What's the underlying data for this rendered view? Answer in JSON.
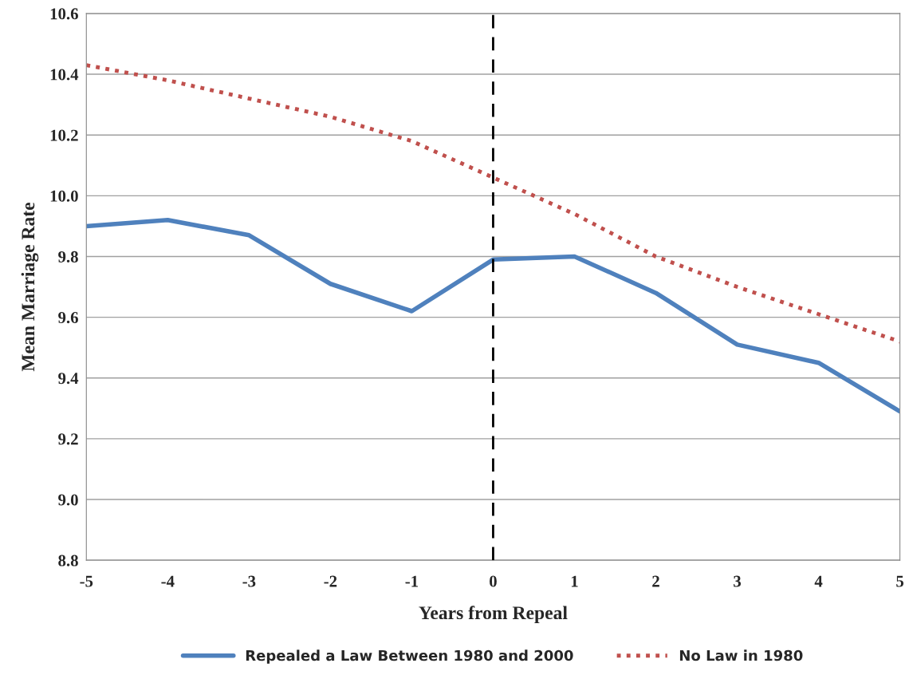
{
  "chart_data": {
    "type": "line",
    "xlabel": "Years from Repeal",
    "ylabel": "Mean Marriage Rate",
    "x": [
      -5,
      -4,
      -3,
      -2,
      -1,
      0,
      1,
      2,
      3,
      4,
      5
    ],
    "series": [
      {
        "name": "Repealed a Law Between 1980 and 2000",
        "color": "#4f81bd",
        "line_style": "solid",
        "values": [
          9.9,
          9.92,
          9.87,
          9.71,
          9.62,
          9.79,
          9.8,
          9.68,
          9.51,
          9.45,
          9.29
        ]
      },
      {
        "name": "No Law in 1980",
        "color": "#c0504d",
        "line_style": "dotted",
        "values": [
          10.43,
          10.38,
          10.32,
          10.26,
          10.18,
          10.06,
          9.94,
          9.8,
          9.7,
          9.61,
          9.52
        ]
      }
    ],
    "xlim": [
      -5,
      5
    ],
    "xticks": [
      -5,
      -4,
      -3,
      -2,
      -1,
      0,
      1,
      2,
      3,
      4,
      5
    ],
    "ylim": [
      8.8,
      10.6
    ],
    "yticks": [
      {
        "value": 8.8,
        "label": "8.8"
      },
      {
        "value": 9.0,
        "label": "9.0"
      },
      {
        "value": 9.2,
        "label": "9.2"
      },
      {
        "value": 9.4,
        "label": "9.4"
      },
      {
        "value": 9.6,
        "label": "9.6"
      },
      {
        "value": 9.8,
        "label": "9.8"
      },
      {
        "value": 10.0,
        "label": "10.0"
      },
      {
        "value": 10.2,
        "label": "10.2"
      },
      {
        "value": 10.4,
        "label": "10.4"
      },
      {
        "value": 10.6,
        "label": "10.6"
      }
    ],
    "ref_lines": [
      {
        "axis": "x",
        "value": 0,
        "color": "#000000",
        "line_style": "dashed"
      }
    ],
    "grid": "y",
    "legend": "bottom",
    "marker": "none"
  }
}
